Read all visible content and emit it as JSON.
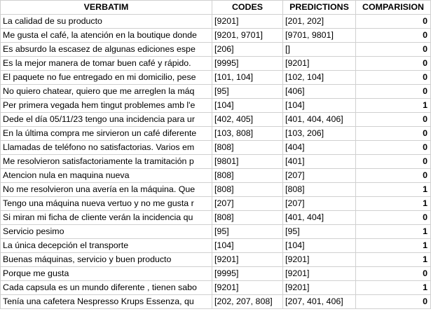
{
  "headers": [
    "VERBATIM",
    "CODES",
    "PREDICTIONS",
    "COMPARISION"
  ],
  "rows": [
    {
      "verbatim": "La calidad de su producto",
      "codes": "[9201]",
      "predictions": "[201, 202]",
      "comparision": "0"
    },
    {
      "verbatim": "Me gusta el café, la atención en la boutique donde",
      "codes": "[9201, 9701]",
      "predictions": "[9701, 9801]",
      "comparision": "0"
    },
    {
      "verbatim": "Es absurdo la escasez de algunas ediciones espe",
      "codes": "[206]",
      "predictions": "[]",
      "comparision": "0"
    },
    {
      "verbatim": "Es la mejor manera de tomar buen café y rápido.",
      "codes": "[9995]",
      "predictions": "[9201]",
      "comparision": "0"
    },
    {
      "verbatim": "El paquete no fue entregado en mi domicilio, pese",
      "codes": "[101, 104]",
      "predictions": "[102, 104]",
      "comparision": "0"
    },
    {
      "verbatim": "No quiero chatear, quiero que me arreglen la máq",
      "codes": "[95]",
      "predictions": "[406]",
      "comparision": "0"
    },
    {
      "verbatim": "Per primera vegada hem tingut problemes amb l'e",
      "codes": "[104]",
      "predictions": "[104]",
      "comparision": "1"
    },
    {
      "verbatim": "Dede el día 05/11/23 tengo una incidencia para ur",
      "codes": "[402, 405]",
      "predictions": "[401, 404, 406]",
      "comparision": "0"
    },
    {
      "verbatim": "En la última compra me sirvieron un café diferente",
      "codes": "[103, 808]",
      "predictions": "[103, 206]",
      "comparision": "0"
    },
    {
      "verbatim": "Llamadas de teléfono no satisfactorias. Varios em",
      "codes": "[808]",
      "predictions": "[404]",
      "comparision": "0"
    },
    {
      "verbatim": "Me resolvieron satisfactoriamente la tramitación p",
      "codes": "[9801]",
      "predictions": "[401]",
      "comparision": "0"
    },
    {
      "verbatim": "Atencion nula en maquina nueva",
      "codes": "[808]",
      "predictions": "[207]",
      "comparision": "0"
    },
    {
      "verbatim": "No me resolvieron una avería en la máquina. Que",
      "codes": "[808]",
      "predictions": "[808]",
      "comparision": "1"
    },
    {
      "verbatim": "Tengo una máquina nueva vertuo y no me gusta r",
      "codes": "[207]",
      "predictions": "[207]",
      "comparision": "1"
    },
    {
      "verbatim": "Si miran mi ficha de cliente verán la incidencia qu",
      "codes": "[808]",
      "predictions": "[401, 404]",
      "comparision": "0"
    },
    {
      "verbatim": "Servicio pesimo",
      "codes": "[95]",
      "predictions": "[95]",
      "comparision": "1"
    },
    {
      "verbatim": "La única decepción el transporte",
      "codes": "[104]",
      "predictions": "[104]",
      "comparision": "1"
    },
    {
      "verbatim": "Buenas máquinas, servicio y buen producto",
      "codes": "[9201]",
      "predictions": "[9201]",
      "comparision": "1"
    },
    {
      "verbatim": "Porque me gusta",
      "codes": "[9995]",
      "predictions": "[9201]",
      "comparision": "0"
    },
    {
      "verbatim": "Cada capsula es un mundo diferente , tienen sabo",
      "codes": "[9201]",
      "predictions": "[9201]",
      "comparision": "1"
    },
    {
      "verbatim": "Tenía una cafetera Nespresso Krups Essenza, qu",
      "codes": "[202, 207, 808]",
      "predictions": "[207, 401, 406]",
      "comparision": "0"
    }
  ]
}
